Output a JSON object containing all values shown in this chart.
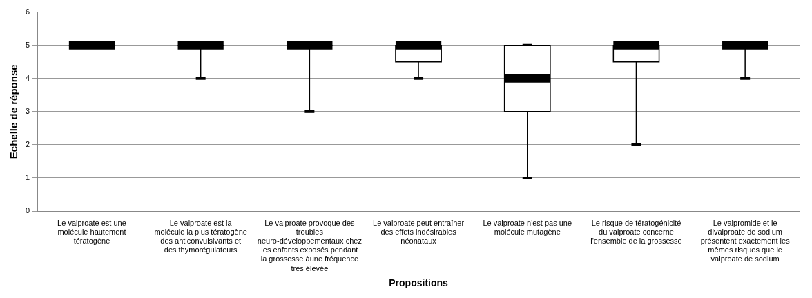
{
  "chart_data": {
    "type": "box",
    "xlabel": "Propositions",
    "ylabel": "Echelle de réponse",
    "categories": [
      "Le valproate est une molécule hautement tératogène",
      "Le valproate est la molécule la plus tératogène des anticonvulsivants et des thymorégulateurs",
      "Le valproate provoque des troubles neuro-développementaux chez les enfants exposés pendant la grossesse àune fréquence très élevée",
      "Le valproate peut entraîner des effets indésirables néonataux",
      "Le valproate n'est pas une molécule mutagène",
      "Le risque de tératogénicité du valproate concerne l'ensemble de la grossesse",
      "Le valpromide et le divalproate de sodium présentent exactement les mêmes risques que le valproate de sodium"
    ],
    "boxes": [
      {
        "low": 5,
        "q1": 5,
        "median": 5,
        "q3": 5,
        "high": 5
      },
      {
        "low": 4,
        "q1": 5,
        "median": 5,
        "q3": 5,
        "high": 5
      },
      {
        "low": 3,
        "q1": 5,
        "median": 5,
        "q3": 5,
        "high": 5
      },
      {
        "low": 4,
        "q1": 4.5,
        "median": 5,
        "q3": 5,
        "high": 5
      },
      {
        "low": 1,
        "q1": 3,
        "median": 4,
        "q3": 5,
        "high": 5
      },
      {
        "low": 2,
        "q1": 4.5,
        "median": 5,
        "q3": 5,
        "high": 5
      },
      {
        "low": 4,
        "q1": 5,
        "median": 5,
        "q3": 5,
        "high": 5
      }
    ],
    "ylim": [
      0,
      6
    ],
    "yticks": [
      0,
      1,
      2,
      3,
      4,
      5,
      6
    ],
    "grid": "y"
  }
}
